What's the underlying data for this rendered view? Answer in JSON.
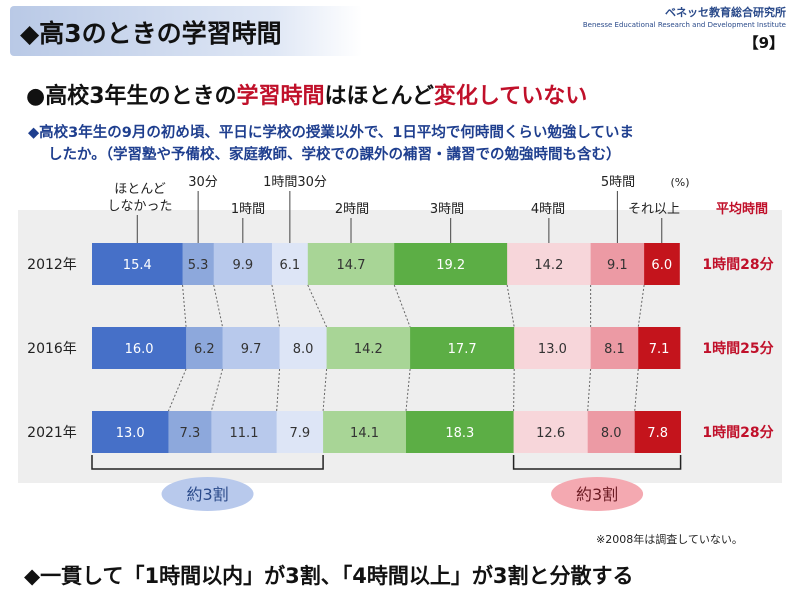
{
  "slide": {
    "title": "◆高3のときの学習時間",
    "brand_jp": "ベネッセ教育総合研究所",
    "brand_en": "Benesse Educational Research and Development Institute",
    "page_number": "【9】",
    "headline_parts": [
      "●高校3年生のときの",
      "学習時間",
      "はほとんど",
      "変化していない"
    ],
    "question_line1": "◆高校3年生の9月の初め頃、平日に学校の授業以外で、1日平均で何時間くらい勉強していま",
    "question_line2": "したか。（学習塾や予備校、家庭教師、学校での課外の補習・講習での勉強時間も含む）",
    "footnote": "※2008年は調査していない。",
    "conclusion": "◆一貫して「1時間以内」が3割、「4時間以上」が3割と分散する"
  },
  "chart_data": {
    "type": "bar",
    "orientation": "horizontal-stacked-100",
    "unit_label": "(%)",
    "categories": [
      "ほとんどしなかった",
      "30分",
      "1時間",
      "1時間30分",
      "2時間",
      "3時間",
      "4時間",
      "5時間",
      "それ以上"
    ],
    "category_labels": [
      {
        "lines": [
          "ほとんど",
          "しなかった"
        ]
      },
      {
        "lines": [
          "30分"
        ]
      },
      {
        "lines": [
          "1時間"
        ]
      },
      {
        "lines": [
          "1時間30分"
        ]
      },
      {
        "lines": [
          "2時間"
        ]
      },
      {
        "lines": [
          "3時間"
        ]
      },
      {
        "lines": [
          "4時間"
        ]
      },
      {
        "lines": [
          "5時間"
        ]
      },
      {
        "lines": [
          "それ以上"
        ]
      }
    ],
    "colors": [
      "#4670c8",
      "#8da8dc",
      "#b8c9ec",
      "#dde5f6",
      "#a8d596",
      "#5cae45",
      "#f7d6da",
      "#ec9aa4",
      "#c4141c"
    ],
    "label_colors": [
      "#ffffff",
      "#333333",
      "#333333",
      "#333333",
      "#333333",
      "#ffffff",
      "#333333",
      "#333333",
      "#ffffff"
    ],
    "avg_header": "平均時間",
    "series": [
      {
        "year": "2012年",
        "values": [
          15.4,
          5.3,
          9.9,
          6.1,
          14.7,
          19.2,
          14.2,
          9.1,
          6.0
        ],
        "avg": "1時間28分"
      },
      {
        "year": "2016年",
        "values": [
          16.0,
          6.2,
          9.7,
          8.0,
          14.2,
          17.7,
          13.0,
          8.1,
          7.1
        ],
        "avg": "1時間25分"
      },
      {
        "year": "2021年",
        "values": [
          13.0,
          7.3,
          11.1,
          7.9,
          14.1,
          18.3,
          12.6,
          8.0,
          7.8
        ],
        "avg": "1時間28分"
      }
    ],
    "groups": [
      {
        "label": "約3割",
        "from": 0,
        "to": 3,
        "fill": "#b8c9ec",
        "text_color": "#2a4a8a"
      },
      {
        "label": "約3割",
        "from": 6,
        "to": 8,
        "fill": "#f4a9b1",
        "text_color": "#6a1a22"
      }
    ]
  }
}
